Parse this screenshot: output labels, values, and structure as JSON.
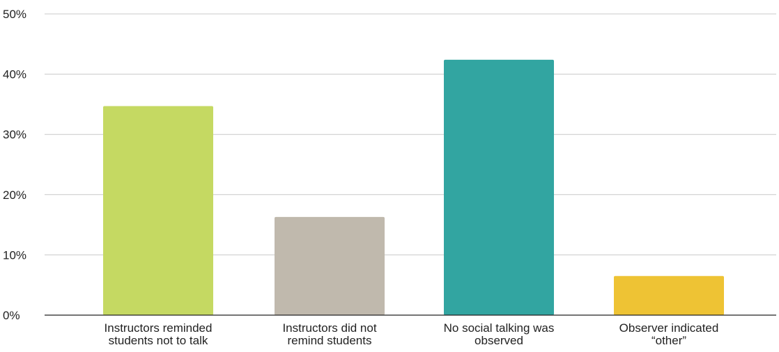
{
  "chart_data": {
    "type": "bar",
    "categories": [
      [
        "Instructors reminded",
        "students not to talk"
      ],
      [
        "Instructors did not",
        "remind students"
      ],
      [
        "No social talking was",
        "observed"
      ],
      [
        "Observer indicated",
        "“other”"
      ]
    ],
    "values": [
      34.7,
      16.3,
      42.4,
      6.5
    ],
    "colors": [
      "#c5d962",
      "#c0b9ad",
      "#32a5a1",
      "#eec334"
    ],
    "ylim": [
      0,
      50
    ],
    "yticks": [
      0,
      10,
      20,
      30,
      40,
      50
    ],
    "ytick_labels": [
      "0%",
      "10%",
      "20%",
      "30%",
      "40%",
      "50%"
    ],
    "grid": true,
    "title": "",
    "xlabel": "",
    "ylabel": ""
  }
}
